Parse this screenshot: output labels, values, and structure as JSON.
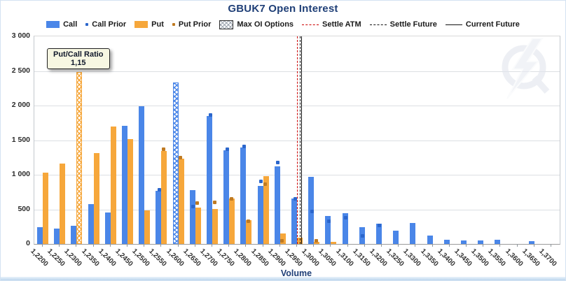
{
  "header": {
    "title": "GBUK7 Open Interest"
  },
  "legend": {
    "items": [
      {
        "label": "Call",
        "marker": "swatch",
        "color": "#4a86e8"
      },
      {
        "label": "Call Prior",
        "marker": "dot",
        "color": "#2b66cc"
      },
      {
        "label": "Put",
        "marker": "swatch",
        "color": "#f6a73b"
      },
      {
        "label": "Put Prior",
        "marker": "dot",
        "color": "#bf7a22"
      },
      {
        "label": "Max OI Options",
        "marker": "hatch",
        "color": "#555555"
      },
      {
        "label": "Settle ATM",
        "marker": "dashed-line",
        "color": "#cc0000"
      },
      {
        "label": "Settle Future",
        "marker": "dashed-line",
        "color": "#111111"
      },
      {
        "label": "Current Future",
        "marker": "solid-line",
        "color": "#111111"
      }
    ]
  },
  "tooltip": {
    "line1": "Put/Call Ratio",
    "line2": "1,15"
  },
  "axes": {
    "x_title": "Volume",
    "y_ticks": [
      "0",
      "500",
      "1 000",
      "1 500",
      "2 000",
      "2 500",
      "3 000"
    ]
  },
  "colors": {
    "call": "#4a86e8",
    "put": "#f6a73b",
    "call_prior": "#2b66cc",
    "put_prior": "#bf7a22",
    "settle_atm": "#cc0000",
    "future_lines": "#111111"
  },
  "chart_data": {
    "type": "bar",
    "title": "GBUK7 Open Interest",
    "xlabel": "Volume",
    "ylabel": "",
    "ylim": [
      0,
      3000
    ],
    "ytick_step": 500,
    "grid": "horizontal",
    "legend_position": "top",
    "categories": [
      "1,2200",
      "1,2250",
      "1,2300",
      "1,2350",
      "1,2400",
      "1,2450",
      "1,2500",
      "1,2550",
      "1,2600",
      "1,2650",
      "1,2700",
      "1,2750",
      "1,2800",
      "1,2850",
      "1,2900",
      "1,2950",
      "1,3000",
      "1,3050",
      "1,3100",
      "1,3150",
      "1,3200",
      "1,3250",
      "1,3300",
      "1,3350",
      "1,3400",
      "1,3450",
      "1,3500",
      "1,3550",
      "1,3600",
      "1,3650",
      "1,3700"
    ],
    "series": [
      {
        "name": "Call",
        "style": "bar",
        "values": [
          245,
          220,
          265,
          580,
          455,
          1710,
          1990,
          770,
          2330,
          775,
          1850,
          1350,
          1390,
          835,
          1120,
          655,
          970,
          400,
          440,
          240,
          290,
          195,
          300,
          120,
          60,
          55,
          55,
          60,
          0,
          40,
          0
        ]
      },
      {
        "name": "Call Prior",
        "style": "point",
        "values": [
          null,
          null,
          null,
          null,
          null,
          null,
          null,
          775,
          null,
          535,
          1860,
          1360,
          1400,
          895,
          1170,
          650,
          460,
          320,
          375,
          115,
          265,
          null,
          null,
          null,
          null,
          null,
          null,
          null,
          null,
          null,
          null
        ]
      },
      {
        "name": "Put",
        "style": "bar",
        "values": [
          1030,
          1160,
          2480,
          1310,
          1700,
          1520,
          480,
          1340,
          1230,
          530,
          510,
          660,
          340,
          985,
          155,
          95,
          35,
          30,
          0,
          0,
          0,
          0,
          0,
          0,
          0,
          0,
          0,
          0,
          0,
          0,
          0
        ]
      },
      {
        "name": "Put Prior",
        "style": "point",
        "values": [
          null,
          null,
          null,
          null,
          null,
          null,
          null,
          1360,
          1240,
          590,
          600,
          645,
          325,
          860,
          45,
          null,
          45,
          null,
          null,
          null,
          null,
          null,
          null,
          null,
          null,
          null,
          null,
          null,
          null,
          null,
          null
        ]
      }
    ],
    "max_oi": {
      "call": "1,2600",
      "put": "1,2300"
    },
    "put_call_ratio": "1,15",
    "vlines": [
      {
        "name": "Settle ATM",
        "x_value": 1.295,
        "style": "dashed",
        "color": "#cc0000"
      },
      {
        "name": "Settle Future",
        "x_value": 1.2959,
        "style": "dashed",
        "color": "#111111"
      },
      {
        "name": "Current Future",
        "x_value": 1.2963,
        "style": "solid",
        "color": "#111111"
      }
    ]
  }
}
